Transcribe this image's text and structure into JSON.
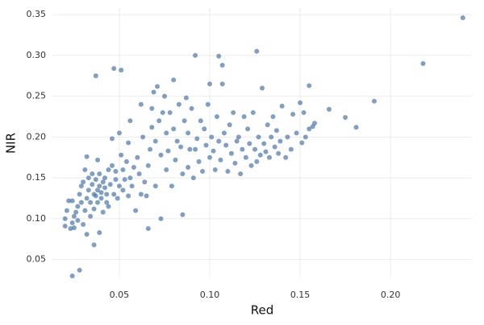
{
  "chart_data": {
    "type": "scatter",
    "x_label": "Red",
    "y_label": "NIR",
    "color": "#4a76a8",
    "grid": true,
    "xlim": [
      0.013,
      0.245
    ],
    "ylim": [
      0.028,
      0.358
    ],
    "xticks": [
      0.05,
      {
        "value": 0.1,
        "label": "0.10"
      },
      0.15,
      {
        "value": 0.2,
        "label": "0.20"
      }
    ],
    "yticks": [
      0.05,
      {
        "value": 0.1,
        "label": "0.10"
      },
      0.15,
      {
        "value": 0.2,
        "label": "0.20"
      },
      0.25,
      {
        "value": 0.3,
        "label": "0.30"
      },
      0.35
    ],
    "x": [
      0.02,
      0.02,
      0.021,
      0.022,
      0.023,
      0.024,
      0.024,
      0.025,
      0.025,
      0.026,
      0.027,
      0.027,
      0.028,
      0.029,
      0.029,
      0.03,
      0.03,
      0.031,
      0.031,
      0.032,
      0.032,
      0.033,
      0.033,
      0.034,
      0.034,
      0.035,
      0.035,
      0.036,
      0.036,
      0.037,
      0.037,
      0.038,
      0.038,
      0.038,
      0.039,
      0.039,
      0.04,
      0.04,
      0.041,
      0.041,
      0.042,
      0.042,
      0.043,
      0.043,
      0.044,
      0.044,
      0.045,
      0.046,
      0.046,
      0.047,
      0.048,
      0.048,
      0.049,
      0.05,
      0.05,
      0.051,
      0.052,
      0.052,
      0.053,
      0.054,
      0.055,
      0.055,
      0.056,
      0.056,
      0.057,
      0.058,
      0.059,
      0.06,
      0.061,
      0.062,
      0.062,
      0.063,
      0.064,
      0.065,
      0.066,
      0.067,
      0.068,
      0.068,
      0.069,
      0.07,
      0.07,
      0.071,
      0.072,
      0.073,
      0.073,
      0.074,
      0.075,
      0.076,
      0.076,
      0.077,
      0.078,
      0.079,
      0.08,
      0.08,
      0.081,
      0.082,
      0.083,
      0.084,
      0.085,
      0.085,
      0.086,
      0.087,
      0.088,
      0.088,
      0.089,
      0.09,
      0.091,
      0.092,
      0.093,
      0.094,
      0.095,
      0.096,
      0.097,
      0.098,
      0.099,
      0.1,
      0.1,
      0.101,
      0.102,
      0.103,
      0.104,
      0.105,
      0.106,
      0.107,
      0.108,
      0.109,
      0.11,
      0.111,
      0.112,
      0.113,
      0.114,
      0.115,
      0.116,
      0.117,
      0.118,
      0.119,
      0.12,
      0.121,
      0.122,
      0.123,
      0.124,
      0.125,
      0.126,
      0.127,
      0.128,
      0.129,
      0.13,
      0.131,
      0.132,
      0.133,
      0.134,
      0.135,
      0.136,
      0.137,
      0.138,
      0.139,
      0.14,
      0.142,
      0.143,
      0.145,
      0.146,
      0.148,
      0.15,
      0.151,
      0.152,
      0.153,
      0.155,
      0.157,
      0.24,
      0.218,
      0.191,
      0.181,
      0.175,
      0.166,
      0.158,
      0.155,
      0.126,
      0.092,
      0.105,
      0.107,
      0.047,
      0.051,
      0.037,
      0.024,
      0.028,
      0.036,
      0.032,
      0.039,
      0.066
    ],
    "values": [
      0.091,
      0.1,
      0.11,
      0.122,
      0.088,
      0.095,
      0.122,
      0.089,
      0.103,
      0.108,
      0.115,
      0.098,
      0.13,
      0.14,
      0.12,
      0.093,
      0.145,
      0.11,
      0.16,
      0.125,
      0.176,
      0.135,
      0.15,
      0.12,
      0.103,
      0.142,
      0.155,
      0.13,
      0.112,
      0.128,
      0.148,
      0.135,
      0.12,
      0.172,
      0.14,
      0.155,
      0.125,
      0.132,
      0.145,
      0.108,
      0.15,
      0.138,
      0.12,
      0.13,
      0.16,
      0.115,
      0.142,
      0.165,
      0.198,
      0.13,
      0.158,
      0.148,
      0.125,
      0.205,
      0.14,
      0.178,
      0.16,
      0.135,
      0.148,
      0.17,
      0.193,
      0.128,
      0.22,
      0.15,
      0.14,
      0.163,
      0.11,
      0.175,
      0.155,
      0.24,
      0.13,
      0.2,
      0.145,
      0.128,
      0.165,
      0.185,
      0.212,
      0.235,
      0.255,
      0.14,
      0.195,
      0.262,
      0.22,
      0.1,
      0.178,
      0.23,
      0.25,
      0.16,
      0.205,
      0.183,
      0.23,
      0.14,
      0.21,
      0.27,
      0.172,
      0.195,
      0.24,
      0.188,
      0.105,
      0.155,
      0.22,
      0.248,
      0.163,
      0.205,
      0.185,
      0.235,
      0.15,
      0.185,
      0.198,
      0.17,
      0.22,
      0.158,
      0.21,
      0.19,
      0.24,
      0.175,
      0.265,
      0.2,
      0.183,
      0.16,
      0.225,
      0.195,
      0.172,
      0.265,
      0.205,
      0.19,
      0.158,
      0.215,
      0.18,
      0.23,
      0.168,
      0.195,
      0.2,
      0.155,
      0.185,
      0.225,
      0.175,
      0.21,
      0.192,
      0.165,
      0.23,
      0.185,
      0.17,
      0.2,
      0.178,
      0.26,
      0.192,
      0.182,
      0.215,
      0.175,
      0.2,
      0.225,
      0.188,
      0.208,
      0.18,
      0.195,
      0.238,
      0.175,
      0.2,
      0.185,
      0.228,
      0.205,
      0.242,
      0.193,
      0.23,
      0.2,
      0.21,
      0.213,
      0.346,
      0.29,
      0.244,
      0.212,
      0.224,
      0.234,
      0.217,
      0.263,
      0.305,
      0.3,
      0.299,
      0.288,
      0.284,
      0.282,
      0.275,
      0.03,
      0.037,
      0.068,
      0.081,
      0.083,
      0.088
    ]
  }
}
